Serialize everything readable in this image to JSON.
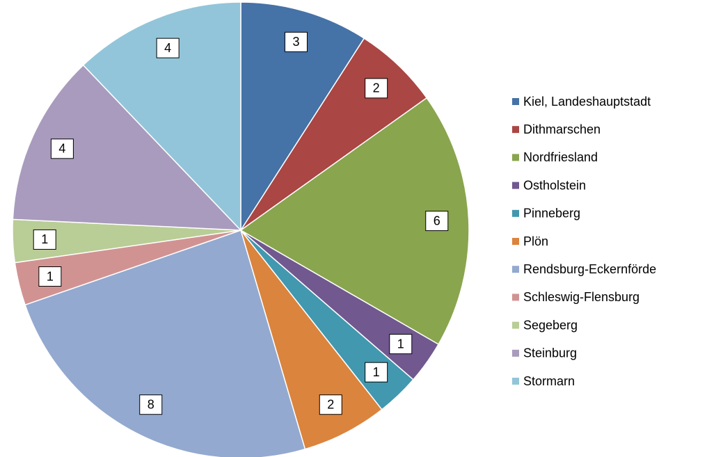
{
  "chart_data": {
    "type": "pie",
    "categories": [
      "Kiel, Landeshauptstadt",
      "Dithmarschen",
      "Nordfriesland",
      "Ostholstein",
      "Pinneberg",
      "Plön",
      "Rendsburg-Eckernförde",
      "Schleswig-Flensburg",
      "Segeberg",
      "Steinburg",
      "Stormarn"
    ],
    "values": [
      3,
      2,
      6,
      1,
      1,
      2,
      8,
      1,
      1,
      4,
      4
    ],
    "colors": [
      "#4572a7",
      "#aa4643",
      "#89a54e",
      "#71588f",
      "#4198af",
      "#db843d",
      "#93a9cf",
      "#d19392",
      "#b9cd96",
      "#a99bbd",
      "#92c5d9"
    ],
    "legend": "right"
  }
}
